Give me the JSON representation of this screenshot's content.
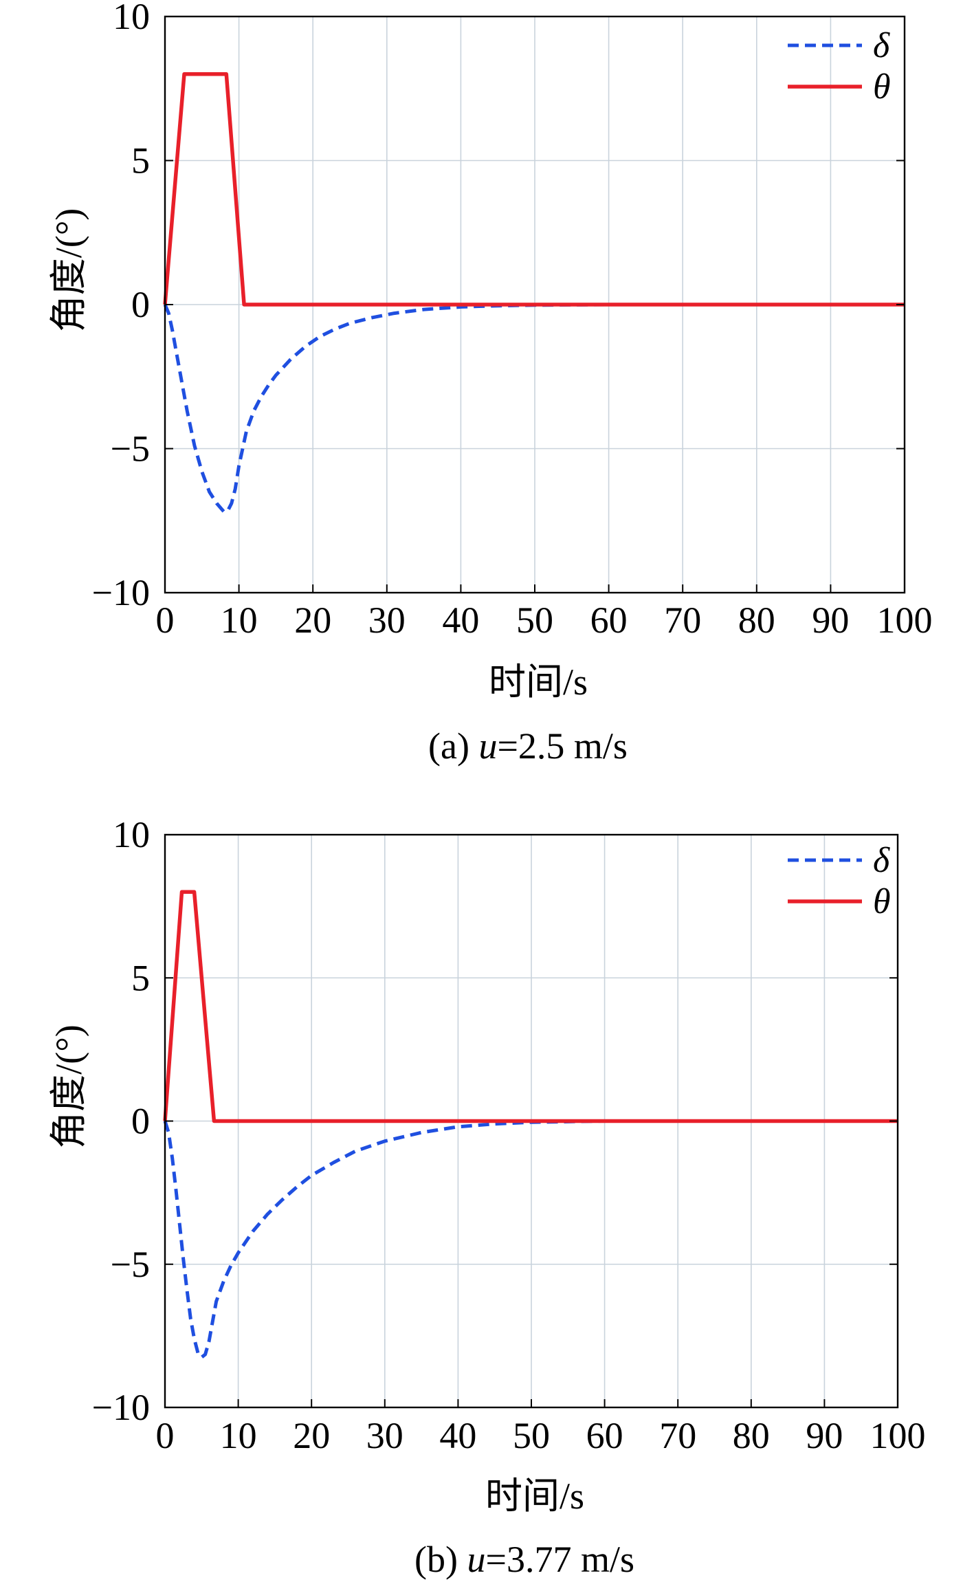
{
  "chart_data": [
    {
      "type": "line",
      "caption_prefix": "(a) ",
      "caption_var": "u",
      "caption_value": "=2.5 m/s",
      "xlabel": "时间/s",
      "ylabel": "角度/(°)",
      "xlim": [
        0,
        100
      ],
      "ylim": [
        -10,
        10
      ],
      "xticks": [
        0,
        10,
        20,
        30,
        40,
        50,
        60,
        70,
        80,
        90,
        100
      ],
      "yticks": [
        10,
        5,
        0,
        -5,
        -10
      ],
      "ytick_labels": [
        "10",
        "5",
        "0",
        "−5",
        "−10"
      ],
      "grid": true,
      "legend_position": "top-right",
      "series": [
        {
          "name": "δ",
          "color": "#1f4fe0",
          "style": "dashed",
          "x": [
            0,
            0.5,
            1,
            2,
            3,
            4,
            5,
            6,
            7,
            8,
            8.5,
            9,
            9.5,
            10,
            11,
            12,
            13,
            14,
            15,
            17,
            19,
            21,
            23,
            25,
            28,
            31,
            35,
            40,
            45,
            50,
            60,
            70,
            80,
            90,
            100
          ],
          "y": [
            0,
            -0.3,
            -0.9,
            -2.3,
            -3.7,
            -4.9,
            -5.8,
            -6.5,
            -6.9,
            -7.2,
            -7.15,
            -6.9,
            -6.4,
            -5.6,
            -4.4,
            -3.7,
            -3.2,
            -2.8,
            -2.45,
            -1.9,
            -1.45,
            -1.1,
            -0.85,
            -0.65,
            -0.45,
            -0.3,
            -0.17,
            -0.08,
            -0.04,
            -0.02,
            0,
            0,
            0,
            0,
            0
          ]
        },
        {
          "name": "θ",
          "color": "#e8202a",
          "style": "solid",
          "x": [
            0,
            2.6,
            8.3,
            10.7,
            100
          ],
          "y": [
            0,
            8,
            8,
            0,
            0
          ]
        }
      ]
    },
    {
      "type": "line",
      "caption_prefix": "(b) ",
      "caption_var": "u",
      "caption_value": "=3.77 m/s",
      "xlabel": "时间/s",
      "ylabel": "角度/(°)",
      "xlim": [
        0,
        100
      ],
      "ylim": [
        -10,
        10
      ],
      "xticks": [
        0,
        10,
        20,
        30,
        40,
        50,
        60,
        70,
        80,
        90,
        100
      ],
      "yticks": [
        10,
        5,
        0,
        -5,
        -10
      ],
      "ytick_labels": [
        "10",
        "5",
        "0",
        "−5",
        "−10"
      ],
      "grid": true,
      "legend_position": "top-right",
      "series": [
        {
          "name": "δ",
          "color": "#1f4fe0",
          "style": "dashed",
          "x": [
            0,
            0.5,
            1,
            1.5,
            2,
            2.5,
            3,
            3.5,
            4,
            4.5,
            5,
            5.5,
            6,
            6.5,
            7,
            8,
            9,
            10,
            12,
            14,
            16,
            18,
            20,
            23,
            26,
            30,
            35,
            40,
            45,
            50,
            60,
            70,
            80,
            90,
            100
          ],
          "y": [
            0,
            -0.4,
            -1.3,
            -2.4,
            -3.6,
            -4.8,
            -5.9,
            -6.9,
            -7.6,
            -8.1,
            -8.25,
            -8.15,
            -7.7,
            -7.0,
            -6.3,
            -5.6,
            -5.05,
            -4.6,
            -3.85,
            -3.25,
            -2.75,
            -2.3,
            -1.9,
            -1.45,
            -1.05,
            -0.7,
            -0.4,
            -0.2,
            -0.1,
            -0.04,
            0,
            0,
            0,
            0,
            0
          ]
        },
        {
          "name": "θ",
          "color": "#e8202a",
          "style": "solid",
          "x": [
            0,
            2.3,
            4.0,
            6.7,
            100
          ],
          "y": [
            0,
            8,
            8,
            0,
            0
          ]
        }
      ]
    }
  ]
}
